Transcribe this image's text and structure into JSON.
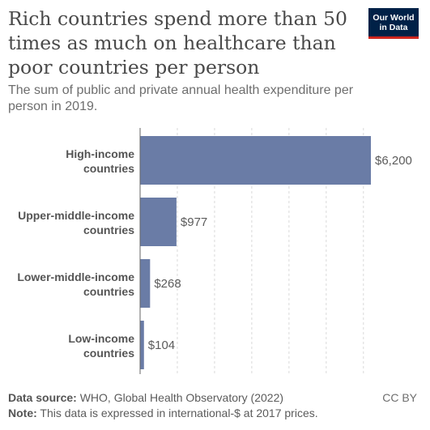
{
  "title": "Rich countries spend more than 50 times as much on healthcare than poor countries per person",
  "subtitle": "The sum of public and private annual health expenditure per person in 2019.",
  "logo": {
    "line1": "Our World",
    "line2": "in Data"
  },
  "footer": {
    "source_label": "Data source:",
    "source_text": "WHO, Global Health Observatory (2022)",
    "note_label": "Note:",
    "note_text": "This data is expressed in international-$ at 2017 prices.",
    "license": "CC BY"
  },
  "colors": {
    "bar": "#6a7ca6",
    "grid": "#d9d9d9",
    "axis": "#666666"
  },
  "chart_data": {
    "type": "bar",
    "orientation": "horizontal",
    "categories": [
      [
        "High-income",
        "countries"
      ],
      [
        "Upper-middle-income",
        "countries"
      ],
      [
        "Lower-middle-income",
        "countries"
      ],
      [
        "Low-income",
        "countries"
      ]
    ],
    "values": [
      6200,
      977,
      268,
      104
    ],
    "value_labels": [
      "$6,200",
      "$977",
      "$268",
      "$104"
    ],
    "xlim": [
      0,
      6200
    ],
    "grid": true
  }
}
